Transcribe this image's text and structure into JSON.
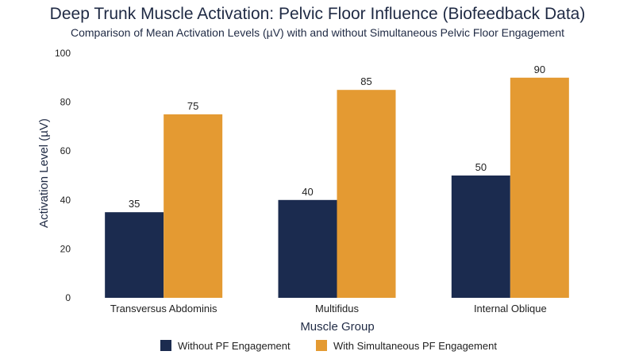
{
  "chart_data": {
    "type": "bar",
    "title": "Deep Trunk Muscle Activation: Pelvic Floor Influence (Biofeedback Data)",
    "subtitle": "Comparison of Mean Activation Levels (µV) with and without Simultaneous Pelvic Floor Engagement",
    "xlabel": "Muscle Group",
    "ylabel": "Activation Level (µV)",
    "categories": [
      "Transversus Abdominis",
      "Multifidus",
      "Internal Oblique"
    ],
    "series": [
      {
        "name": "Without PF Engagement",
        "values": [
          35,
          40,
          50
        ],
        "color": "#1b2b4f"
      },
      {
        "name": "With Simultaneous PF Engagement",
        "values": [
          75,
          85,
          90
        ],
        "color": "#e49a32"
      }
    ],
    "ylim": [
      0,
      100
    ],
    "yticks": [
      0,
      20,
      40,
      60,
      80,
      100
    ],
    "grid": false,
    "legend_position": "bottom-center",
    "data_labels": true
  }
}
